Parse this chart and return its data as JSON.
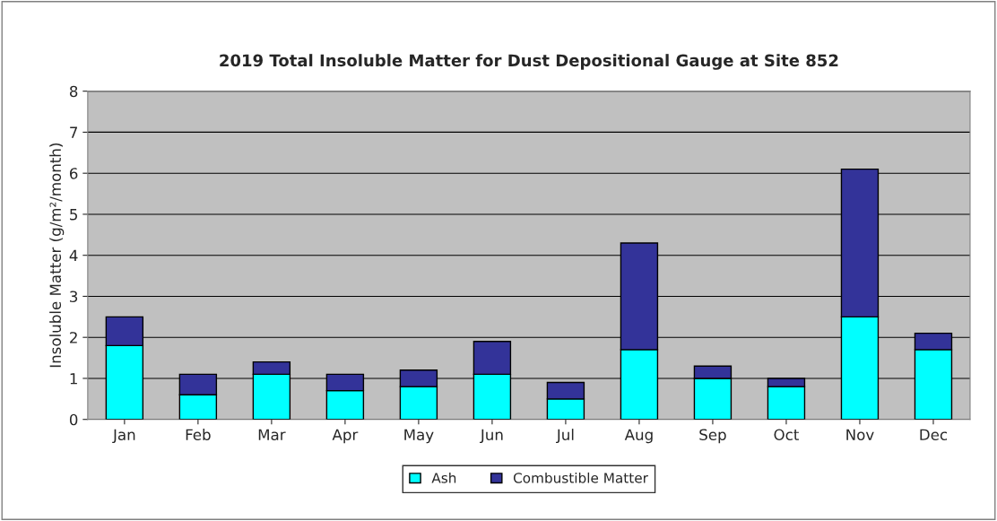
{
  "chart_data": {
    "type": "bar",
    "title": "2019 Total Insoluble Matter for Dust Depositional Gauge at Site 852",
    "ylabel": "Insoluble Matter (g/m²/month)",
    "categories": [
      "Jan",
      "Feb",
      "Mar",
      "Apr",
      "May",
      "Jun",
      "Jul",
      "Aug",
      "Sep",
      "Oct",
      "Nov",
      "Dec"
    ],
    "series": [
      {
        "name": "Ash",
        "color": "#00ffff",
        "values": [
          1.8,
          0.6,
          1.1,
          0.7,
          0.8,
          1.1,
          0.5,
          1.7,
          1.0,
          0.8,
          2.5,
          1.7
        ]
      },
      {
        "name": "Combustible Matter",
        "color": "#333399",
        "values": [
          0.7,
          0.5,
          0.3,
          0.4,
          0.4,
          0.8,
          0.4,
          2.6,
          0.3,
          0.2,
          3.6,
          0.4
        ]
      }
    ],
    "stacked": true,
    "ylim": [
      0,
      8
    ],
    "yticks": [
      0,
      1,
      2,
      3,
      4,
      5,
      6,
      7,
      8
    ],
    "grid": "y",
    "legend": "bottom"
  }
}
